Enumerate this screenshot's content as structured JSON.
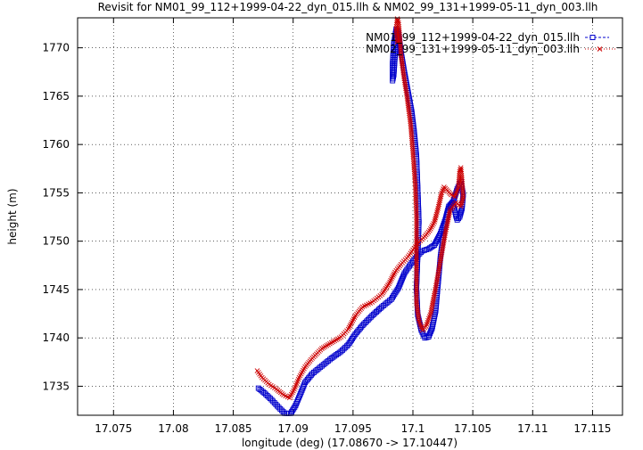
{
  "chart_data": {
    "type": "scatter",
    "title": "Revisit for NM01_99_112+1999-04-22_dyn_015.llh & NM02_99_131+1999-05-11_dyn_003.llh",
    "xlabel": "longitude (deg) (17.08670 -> 17.10447)",
    "ylabel": "height (m)",
    "xlim": [
      17.072,
      17.1175
    ],
    "ylim": [
      1732.0,
      1773.1
    ],
    "x_ticks": [
      17.075,
      17.08,
      17.085,
      17.09,
      17.095,
      17.1,
      17.105,
      17.11,
      17.115
    ],
    "x_tick_labels": [
      "17.075",
      "17.08",
      "17.085",
      "17.09",
      "17.095",
      "17.1",
      "17.105",
      "17.11",
      "17.115"
    ],
    "y_ticks": [
      1735,
      1740,
      1745,
      1750,
      1755,
      1760,
      1765,
      1770
    ],
    "y_tick_labels": [
      "1735",
      "1740",
      "1745",
      "1750",
      "1755",
      "1760",
      "1765",
      "1770"
    ],
    "grid": true,
    "legend_position": "top-right",
    "series": [
      {
        "name": "NM01_99_112+1999-04-22_dyn_015.llh",
        "color": "#0000cc",
        "marker": "square",
        "legend_style": "-□---",
        "path": [
          [
            17.0871,
            1734.8
          ],
          [
            17.0876,
            1734.3
          ],
          [
            17.0882,
            1733.6
          ],
          [
            17.0888,
            1732.8
          ],
          [
            17.0893,
            1732.2
          ],
          [
            17.0898,
            1732.2
          ],
          [
            17.0902,
            1733.0
          ],
          [
            17.0906,
            1734.2
          ],
          [
            17.091,
            1735.4
          ],
          [
            17.0916,
            1736.3
          ],
          [
            17.0924,
            1737.1
          ],
          [
            17.0932,
            1737.9
          ],
          [
            17.094,
            1738.6
          ],
          [
            17.0946,
            1739.3
          ],
          [
            17.0952,
            1740.4
          ],
          [
            17.0958,
            1741.3
          ],
          [
            17.0966,
            1742.3
          ],
          [
            17.0974,
            1743.2
          ],
          [
            17.0982,
            1744.0
          ],
          [
            17.0988,
            1745.2
          ],
          [
            17.0993,
            1746.7
          ],
          [
            17.0998,
            1747.6
          ],
          [
            17.1003,
            1748.4
          ],
          [
            17.1008,
            1749.0
          ],
          [
            17.1013,
            1749.2
          ],
          [
            17.1018,
            1749.6
          ],
          [
            17.1023,
            1750.8
          ],
          [
            17.1027,
            1752.2
          ],
          [
            17.103,
            1753.6
          ],
          [
            17.1033,
            1754.0
          ],
          [
            17.1035,
            1753.2
          ],
          [
            17.1036,
            1752.6
          ],
          [
            17.1037,
            1752.2
          ],
          [
            17.1039,
            1752.5
          ],
          [
            17.1041,
            1753.4
          ],
          [
            17.1042,
            1754.8
          ],
          [
            17.104,
            1756.2
          ],
          [
            17.1037,
            1755.4
          ],
          [
            17.1034,
            1754.2
          ],
          [
            17.103,
            1753.4
          ],
          [
            17.1026,
            1751.2
          ],
          [
            17.1023,
            1748.4
          ],
          [
            17.1021,
            1745.6
          ],
          [
            17.1019,
            1742.8
          ],
          [
            17.1016,
            1741.0
          ],
          [
            17.1013,
            1740.1
          ],
          [
            17.101,
            1740.0
          ],
          [
            17.1007,
            1740.8
          ],
          [
            17.1004,
            1742.4
          ],
          [
            17.1003,
            1745.2
          ],
          [
            17.1004,
            1748.5
          ],
          [
            17.1005,
            1752.0
          ],
          [
            17.1004,
            1755.5
          ],
          [
            17.1003,
            1758.8
          ],
          [
            17.1001,
            1761.4
          ],
          [
            17.0999,
            1763.4
          ],
          [
            17.0996,
            1765.4
          ],
          [
            17.0993,
            1767.4
          ],
          [
            17.099,
            1769.6
          ],
          [
            17.0988,
            1771.6
          ],
          [
            17.0987,
            1771.8
          ],
          [
            17.0986,
            1770.6
          ],
          [
            17.0985,
            1769.0
          ],
          [
            17.0984,
            1767.2
          ],
          [
            17.0983,
            1766.6
          ],
          [
            17.0983,
            1768.4
          ],
          [
            17.0984,
            1770.4
          ],
          [
            17.0986,
            1771.9
          ],
          [
            17.0988,
            1770.9
          ],
          [
            17.099,
            1769.4
          ]
        ]
      },
      {
        "name": "NM02_99_131+1999-05-11_dyn_003.llh",
        "color": "#cc0000",
        "marker": "x",
        "legend_style": "····+····",
        "path": [
          [
            17.087,
            1736.6
          ],
          [
            17.0874,
            1735.9
          ],
          [
            17.088,
            1735.2
          ],
          [
            17.0886,
            1734.7
          ],
          [
            17.0892,
            1734.1
          ],
          [
            17.0897,
            1733.8
          ],
          [
            17.0901,
            1734.7
          ],
          [
            17.0905,
            1735.9
          ],
          [
            17.091,
            1737.0
          ],
          [
            17.0916,
            1737.9
          ],
          [
            17.0924,
            1738.9
          ],
          [
            17.0932,
            1739.5
          ],
          [
            17.094,
            1740.1
          ],
          [
            17.0946,
            1740.9
          ],
          [
            17.0952,
            1742.3
          ],
          [
            17.0958,
            1743.2
          ],
          [
            17.0966,
            1743.7
          ],
          [
            17.0974,
            1744.5
          ],
          [
            17.098,
            1745.6
          ],
          [
            17.0985,
            1746.8
          ],
          [
            17.099,
            1747.6
          ],
          [
            17.0996,
            1748.4
          ],
          [
            17.1,
            1749.1
          ],
          [
            17.1005,
            1749.9
          ],
          [
            17.101,
            1750.5
          ],
          [
            17.1014,
            1751.1
          ],
          [
            17.1018,
            1752.0
          ],
          [
            17.1021,
            1753.4
          ],
          [
            17.1024,
            1755.0
          ],
          [
            17.1026,
            1755.6
          ],
          [
            17.1029,
            1755.2
          ],
          [
            17.1032,
            1754.8
          ],
          [
            17.1035,
            1754.6
          ],
          [
            17.1038,
            1755.6
          ],
          [
            17.1039,
            1757.2
          ],
          [
            17.104,
            1757.6
          ],
          [
            17.1041,
            1756.4
          ],
          [
            17.1042,
            1754.6
          ],
          [
            17.104,
            1753.6
          ],
          [
            17.1036,
            1754.0
          ],
          [
            17.1031,
            1753.2
          ],
          [
            17.1027,
            1750.8
          ],
          [
            17.1023,
            1748.0
          ],
          [
            17.1019,
            1745.2
          ],
          [
            17.1015,
            1742.6
          ],
          [
            17.1011,
            1741.2
          ],
          [
            17.1008,
            1740.8
          ],
          [
            17.1005,
            1741.8
          ],
          [
            17.1003,
            1743.6
          ],
          [
            17.1003,
            1746.2
          ],
          [
            17.1003,
            1749.2
          ],
          [
            17.1003,
            1752.4
          ],
          [
            17.1002,
            1755.8
          ],
          [
            17.1,
            1759.2
          ],
          [
            17.0998,
            1762.2
          ],
          [
            17.0995,
            1765.0
          ],
          [
            17.0992,
            1767.4
          ],
          [
            17.099,
            1769.4
          ],
          [
            17.0989,
            1771.2
          ],
          [
            17.0988,
            1772.6
          ],
          [
            17.0987,
            1773.0
          ],
          [
            17.0986,
            1772.0
          ],
          [
            17.0987,
            1770.6
          ]
        ]
      }
    ]
  }
}
